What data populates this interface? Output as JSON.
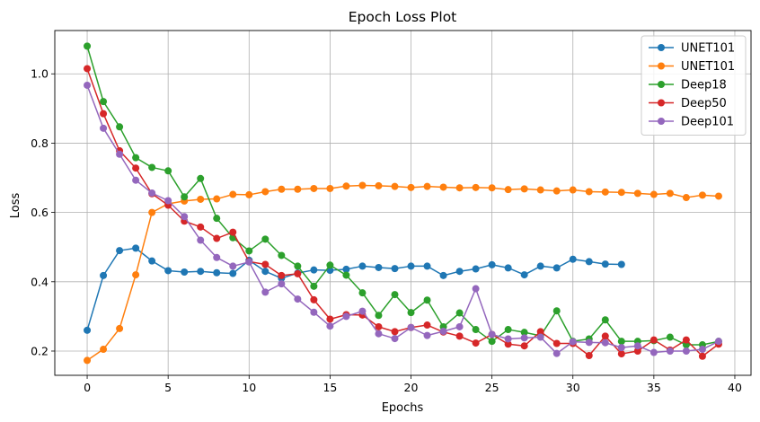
{
  "chart_data": {
    "type": "line",
    "title": "Epoch Loss Plot",
    "xlabel": "Epochs",
    "ylabel": "Loss",
    "xlim": [
      -2,
      41
    ],
    "ylim": [
      0.13,
      1.125
    ],
    "xticks": [
      0,
      5,
      10,
      15,
      20,
      25,
      30,
      35,
      40
    ],
    "yticks": [
      0.2,
      0.4,
      0.6,
      0.8,
      1.0
    ],
    "xtick_labels": [
      "0",
      "5",
      "10",
      "15",
      "20",
      "25",
      "30",
      "35",
      "40"
    ],
    "ytick_labels": [
      "0.2",
      "0.4",
      "0.6",
      "0.8",
      "1.0"
    ],
    "grid": true,
    "legend_position": "top-right",
    "series": [
      {
        "name": "UNET101",
        "color": "#1f77b4",
        "values": [
          0.26,
          0.418,
          0.49,
          0.497,
          0.46,
          0.432,
          0.428,
          0.43,
          0.426,
          0.424,
          0.462,
          0.43,
          0.41,
          0.425,
          0.434,
          0.433,
          0.436,
          0.445,
          0.441,
          0.438,
          0.445,
          0.445,
          0.418,
          0.43,
          0.437,
          0.449,
          0.44,
          0.42,
          0.445,
          0.44,
          0.465,
          0.458,
          0.451,
          0.45
        ]
      },
      {
        "name": "UNET101",
        "color": "#ff7f0e",
        "values": [
          0.173,
          0.205,
          0.265,
          0.42,
          0.6,
          0.625,
          0.633,
          0.638,
          0.639,
          0.652,
          0.651,
          0.66,
          0.667,
          0.667,
          0.669,
          0.669,
          0.676,
          0.678,
          0.677,
          0.675,
          0.672,
          0.675,
          0.673,
          0.671,
          0.672,
          0.671,
          0.666,
          0.668,
          0.665,
          0.662,
          0.665,
          0.66,
          0.659,
          0.658,
          0.655,
          0.652,
          0.655,
          0.643,
          0.65,
          0.647
        ]
      },
      {
        "name": "Deep18",
        "color": "#2ca02c",
        "values": [
          1.08,
          0.92,
          0.847,
          0.758,
          0.73,
          0.72,
          0.645,
          0.698,
          0.583,
          0.527,
          0.489,
          0.523,
          0.476,
          0.445,
          0.387,
          0.448,
          0.419,
          0.368,
          0.303,
          0.363,
          0.311,
          0.347,
          0.27,
          0.31,
          0.262,
          0.228,
          0.262,
          0.254,
          0.244,
          0.316,
          0.228,
          0.235,
          0.29,
          0.228,
          0.228,
          0.23,
          0.24,
          0.218,
          0.218,
          0.228
        ]
      },
      {
        "name": "Deep50",
        "color": "#d62728",
        "values": [
          1.015,
          0.885,
          0.778,
          0.728,
          0.654,
          0.621,
          0.575,
          0.558,
          0.525,
          0.543,
          0.458,
          0.45,
          0.418,
          0.423,
          0.348,
          0.292,
          0.305,
          0.304,
          0.27,
          0.256,
          0.268,
          0.275,
          0.255,
          0.243,
          0.223,
          0.248,
          0.22,
          0.215,
          0.256,
          0.222,
          0.222,
          0.187,
          0.243,
          0.192,
          0.2,
          0.232,
          0.203,
          0.232,
          0.185,
          0.22
        ]
      },
      {
        "name": "Deep101",
        "color": "#9467bd",
        "values": [
          0.967,
          0.843,
          0.768,
          0.693,
          0.656,
          0.634,
          0.588,
          0.52,
          0.47,
          0.445,
          0.457,
          0.37,
          0.394,
          0.35,
          0.312,
          0.272,
          0.3,
          0.315,
          0.25,
          0.236,
          0.268,
          0.245,
          0.257,
          0.27,
          0.38,
          0.248,
          0.235,
          0.238,
          0.24,
          0.193,
          0.227,
          0.225,
          0.224,
          0.21,
          0.215,
          0.196,
          0.2,
          0.2,
          0.205,
          0.228
        ]
      }
    ]
  }
}
